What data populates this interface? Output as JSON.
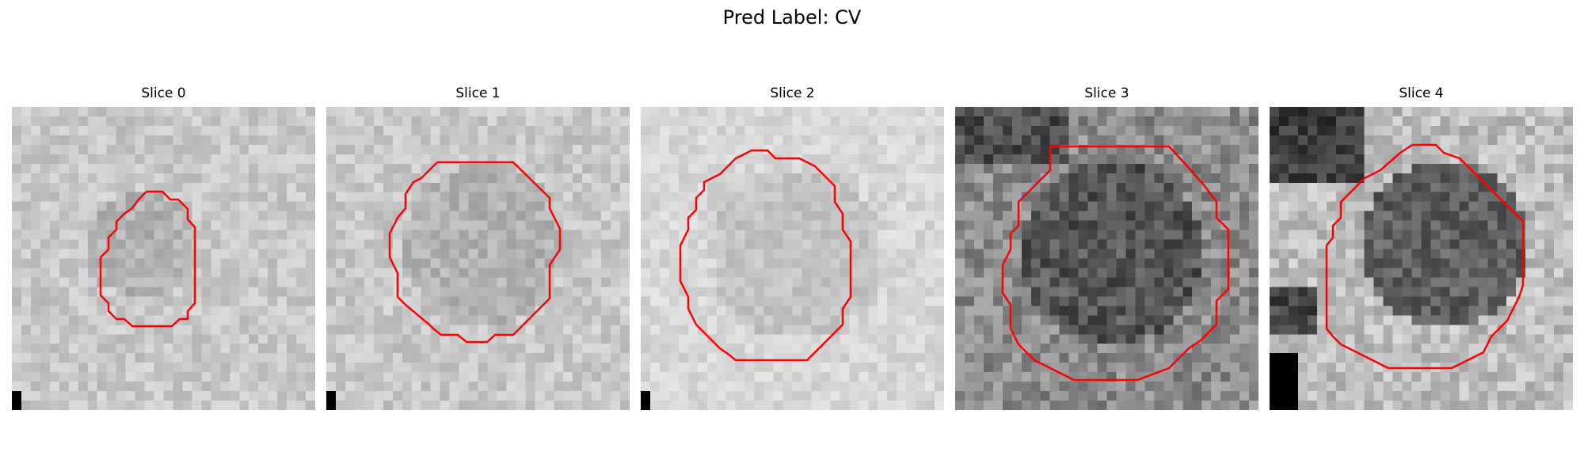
{
  "figure": {
    "title": "Pred Label: CV",
    "contour_color": "#ff0000"
  },
  "panels": [
    {
      "title": "Slice 0",
      "tone": "light"
    },
    {
      "title": "Slice 1",
      "tone": "light"
    },
    {
      "title": "Slice 2",
      "tone": "lighter"
    },
    {
      "title": "Slice 3",
      "tone": "dark"
    },
    {
      "title": "Slice 4",
      "tone": "medium"
    }
  ]
}
